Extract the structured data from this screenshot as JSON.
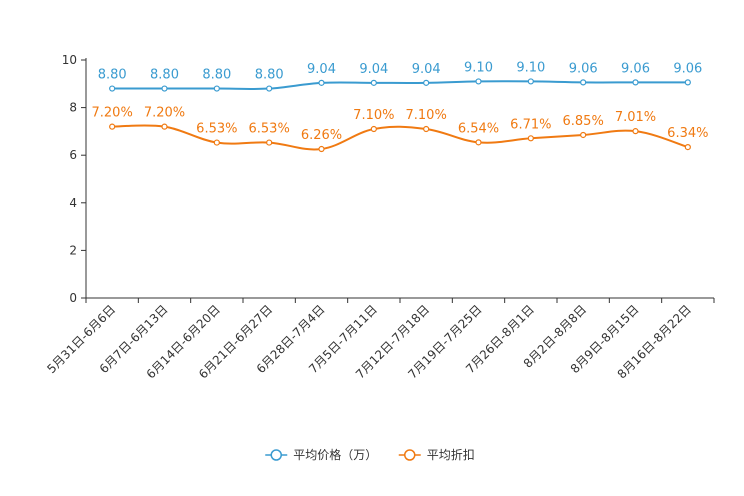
{
  "chart_data": {
    "type": "line",
    "title": "",
    "xlabel": "",
    "ylabel": "",
    "ylim": [
      0,
      10
    ],
    "yticks": [
      0,
      2,
      4,
      6,
      8,
      10
    ],
    "grid": false,
    "legend_position": "bottom-center",
    "categories": [
      "5月31日-6月6日",
      "6月7日-6月13日",
      "6月14日-6月20日",
      "6月21日-6月27日",
      "6月28日-7月4日",
      "7月5日-7月11日",
      "7月12日-7月18日",
      "7月19日-7月25日",
      "7月26日-8月1日",
      "8月2日-8月8日",
      "8月9日-8月15日",
      "8月16日-8月22日"
    ],
    "series": [
      {
        "name": "平均价格（万）",
        "color": "#3a9bd0",
        "values": [
          8.8,
          8.8,
          8.8,
          8.8,
          9.04,
          9.04,
          9.04,
          9.1,
          9.1,
          9.06,
          9.06,
          9.06
        ],
        "labels": [
          "8.80",
          "8.80",
          "8.80",
          "8.80",
          "9.04",
          "9.04",
          "9.04",
          "9.10",
          "9.10",
          "9.06",
          "9.06",
          "9.06"
        ]
      },
      {
        "name": "平均折扣",
        "color": "#f07a12",
        "values": [
          7.2,
          7.2,
          6.53,
          6.53,
          6.26,
          7.1,
          7.1,
          6.54,
          6.71,
          6.85,
          7.01,
          6.34
        ],
        "labels": [
          "7.20%",
          "7.20%",
          "6.53%",
          "6.53%",
          "6.26%",
          "7.10%",
          "7.10%",
          "6.54%",
          "6.71%",
          "6.85%",
          "7.01%",
          "6.34%"
        ]
      }
    ]
  }
}
